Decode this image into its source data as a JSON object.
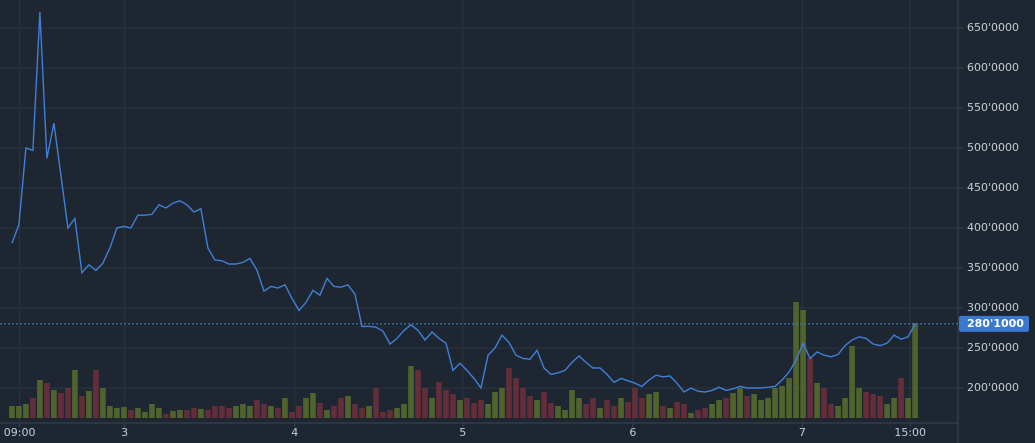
{
  "chart_data": {
    "type": "line",
    "x": [
      0,
      1,
      2,
      3,
      4,
      5,
      6,
      7,
      8,
      9,
      10,
      11,
      12,
      13,
      14,
      15,
      16,
      17,
      18,
      19,
      20,
      21,
      22,
      23,
      24,
      25,
      26,
      27,
      28,
      29,
      30,
      31,
      32,
      33,
      34,
      35,
      36,
      37,
      38,
      39,
      40,
      41,
      42,
      43,
      44,
      45,
      46,
      47,
      48,
      49,
      50,
      51,
      52,
      53,
      54,
      55,
      56,
      57,
      58,
      59,
      60,
      61,
      62,
      63,
      64,
      65,
      66,
      67,
      68,
      69,
      70,
      71,
      72,
      73,
      74,
      75,
      76,
      77,
      78,
      79,
      80,
      81,
      82,
      83,
      84,
      85,
      86,
      87,
      88,
      89,
      90,
      91,
      92,
      93,
      94,
      95,
      96,
      97,
      98,
      99,
      100,
      101,
      102,
      103,
      104,
      105,
      106,
      107,
      108,
      109,
      110,
      111,
      112,
      113,
      114,
      115,
      116,
      117,
      118,
      119,
      120,
      121,
      122,
      123,
      124,
      125,
      126,
      127,
      128,
      129
    ],
    "series": [
      {
        "color": "#3f7fd8",
        "values": [
          381,
          404,
          500,
          497,
          670,
          487,
          531,
          466,
          400,
          412,
          344,
          354,
          347,
          356,
          375,
          400,
          402,
          400,
          416,
          416,
          417,
          429,
          425,
          431,
          434,
          429,
          420,
          424,
          375,
          360,
          359,
          355,
          355,
          357,
          362,
          347,
          321,
          327,
          325,
          329,
          312,
          297,
          307,
          322,
          316,
          337,
          327,
          326,
          329,
          317,
          277,
          277,
          276,
          271,
          255,
          262,
          272,
          279,
          272,
          260,
          270,
          262,
          256,
          222,
          231,
          222,
          212,
          200,
          241,
          250,
          266,
          257,
          241,
          237,
          236,
          247,
          225,
          217,
          219,
          222,
          232,
          240,
          232,
          225,
          225,
          217,
          207,
          212,
          209,
          206,
          202,
          210,
          216,
          214,
          215,
          206,
          195,
          200,
          196,
          195,
          197,
          201,
          197,
          199,
          202,
          200,
          200,
          200,
          201,
          202,
          210,
          220,
          235,
          256,
          237,
          245,
          241,
          239,
          242,
          253,
          260,
          264,
          262,
          255,
          253,
          256,
          266,
          261,
          264,
          280.1
        ]
      }
    ],
    "volume": [
      12,
      12,
      14,
      20,
      38,
      35,
      28,
      25,
      30,
      48,
      22,
      27,
      48,
      30,
      12,
      10,
      11,
      8,
      10,
      6,
      14,
      10,
      4,
      7,
      8,
      8,
      10,
      9,
      8,
      12,
      12,
      10,
      12,
      14,
      12,
      18,
      14,
      12,
      10,
      20,
      6,
      12,
      20,
      25,
      15,
      8,
      12,
      20,
      22,
      14,
      10,
      12,
      30,
      6,
      8,
      10,
      14,
      52,
      48,
      30,
      20,
      36,
      28,
      24,
      18,
      20,
      15,
      18,
      14,
      26,
      30,
      50,
      40,
      30,
      22,
      18,
      26,
      15,
      12,
      8,
      28,
      20,
      14,
      20,
      10,
      18,
      12,
      20,
      16,
      30,
      20,
      24,
      26,
      12,
      10,
      16,
      14,
      5,
      8,
      10,
      14,
      18,
      20,
      25,
      30,
      22,
      24,
      18,
      20,
      30,
      32,
      40,
      116,
      108,
      60,
      35,
      30,
      14,
      12,
      20,
      72,
      30,
      26,
      24,
      22,
      14,
      20,
      40,
      20,
      95
    ],
    "volume_lim": [
      0,
      418
    ],
    "up_color": "#566a2e",
    "down_color": "#6a2f3b",
    "xlim": [
      -1.7,
      134.7
    ],
    "xticks": [
      {
        "value": 1.1,
        "label": "09:00"
      },
      {
        "value": 16.1,
        "label": "3"
      },
      {
        "value": 40.4,
        "label": "4"
      },
      {
        "value": 64.4,
        "label": "5"
      },
      {
        "value": 88.7,
        "label": "6"
      },
      {
        "value": 112.9,
        "label": "7"
      },
      {
        "value": 128.3,
        "label": "15:00"
      }
    ],
    "ylim": [
      156.25,
      685
    ],
    "yticks": [
      {
        "value": 200,
        "label": "200'0000"
      },
      {
        "value": 250,
        "label": "250'0000"
      },
      {
        "value": 300,
        "label": "300'0000"
      },
      {
        "value": 350,
        "label": "350'0000"
      },
      {
        "value": 400,
        "label": "400'0000"
      },
      {
        "value": 450,
        "label": "450'0000"
      },
      {
        "value": 500,
        "label": "500'0000"
      },
      {
        "value": 550,
        "label": "550'0000"
      },
      {
        "value": 600,
        "label": "600'0000"
      },
      {
        "value": 650,
        "label": "650'0000"
      }
    ],
    "last_price": {
      "value": 280.1,
      "label": "280'1000"
    },
    "grid": true
  }
}
